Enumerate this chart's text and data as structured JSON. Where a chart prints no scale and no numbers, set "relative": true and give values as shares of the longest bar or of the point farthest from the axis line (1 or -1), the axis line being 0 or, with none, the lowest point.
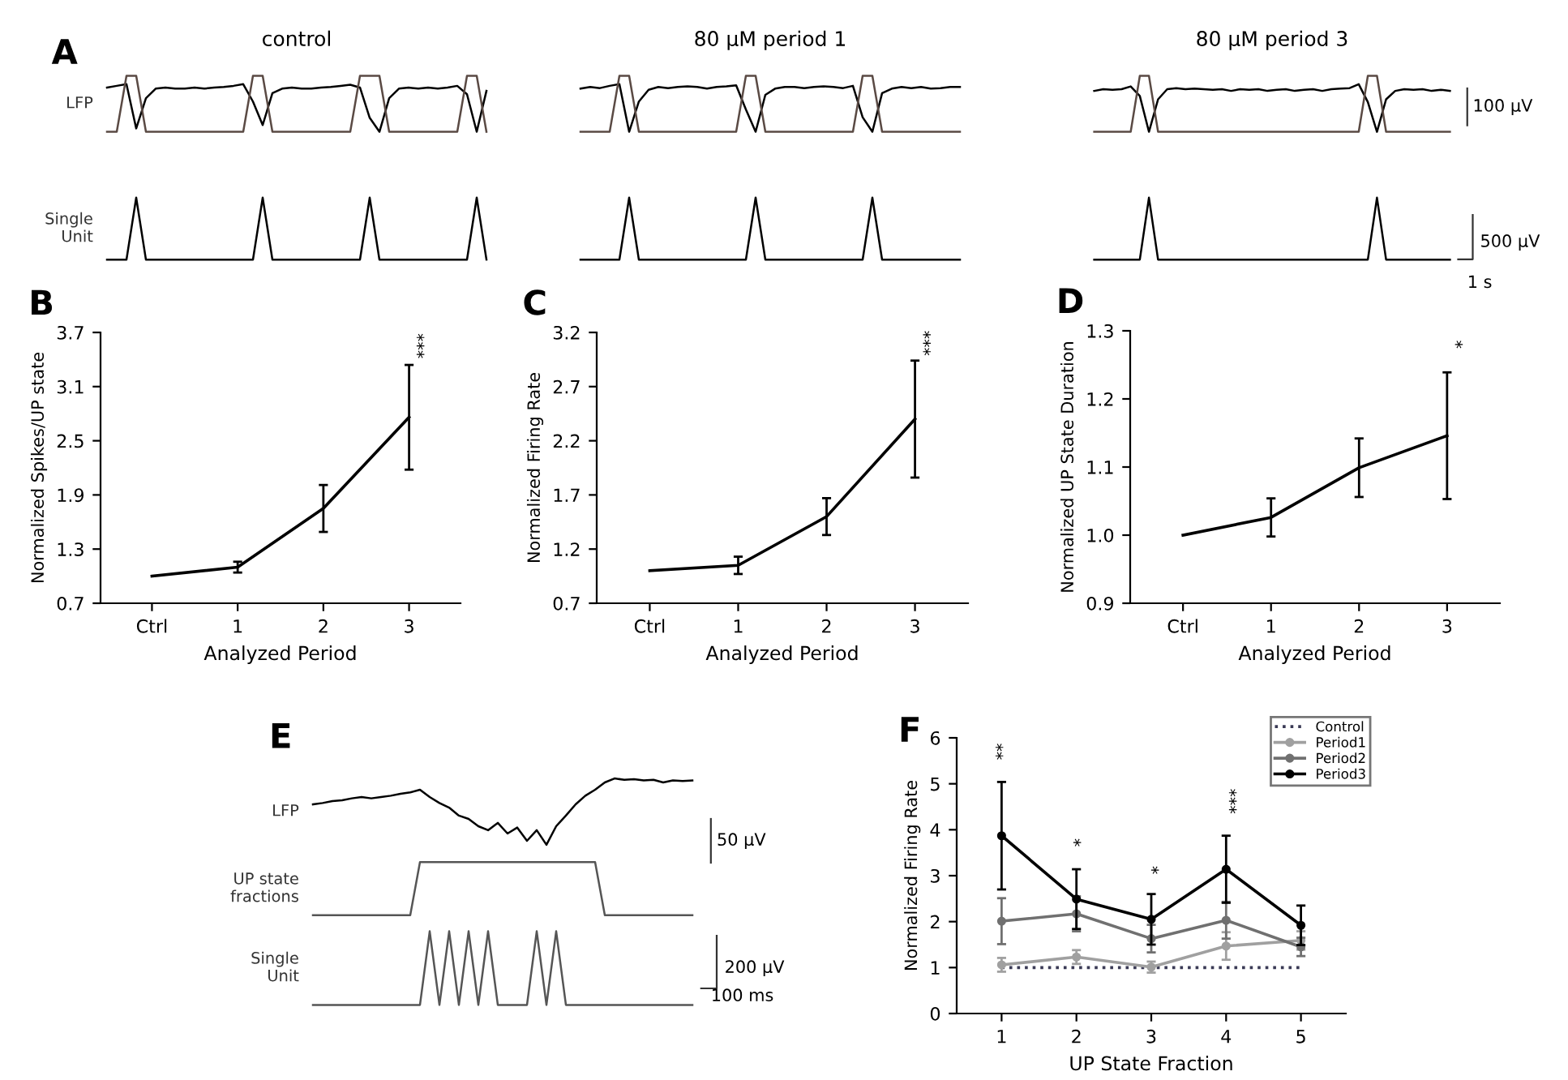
{
  "chart_data": [
    {
      "type": "line",
      "title": "control",
      "ylabel": "LFP",
      "relative": true,
      "annotations": [
        "A"
      ],
      "categories": [
        null,
        null,
        null,
        null,
        null,
        null,
        null,
        null,
        null,
        null,
        null,
        null,
        null,
        null,
        null,
        null,
        null,
        null,
        null,
        null,
        null,
        null,
        null,
        null,
        null,
        null,
        null,
        null,
        null,
        null,
        null,
        null,
        null,
        null,
        null,
        null,
        null,
        null,
        null,
        null
      ],
      "series": [
        {
          "color": "#000000",
          "values": [
            0.79,
            0.82,
            0.85,
            0.06,
            0.6,
            0.77,
            0.79,
            0.77,
            0.77,
            0.79,
            0.77,
            0.79,
            0.8,
            0.82,
            0.85,
            0.54,
            0.12,
            0.69,
            0.77,
            0.79,
            0.77,
            0.77,
            0.79,
            0.8,
            0.82,
            0.84,
            0.79,
            0.25,
            0,
            0.6,
            0.77,
            0.79,
            0.77,
            0.79,
            0.77,
            0.79,
            0.82,
            0.67,
            0,
            0.73
          ]
        },
        {
          "color": "#5a4a44",
          "values": [
            0,
            0,
            1,
            1,
            0,
            0,
            0,
            0,
            0,
            0,
            0,
            0,
            0,
            0,
            0,
            1,
            1,
            0,
            0,
            0,
            0,
            0,
            0,
            0,
            0,
            0,
            1,
            1,
            1,
            0,
            0,
            0,
            0,
            0,
            0,
            0,
            0,
            1,
            1,
            0
          ]
        }
      ]
    },
    {
      "type": "line",
      "ylabel": "Single Unit",
      "relative": true,
      "categories": [
        null,
        null,
        null,
        null,
        null,
        null,
        null,
        null,
        null,
        null,
        null,
        null,
        null,
        null,
        null,
        null,
        null,
        null,
        null,
        null,
        null,
        null,
        null,
        null,
        null,
        null,
        null,
        null,
        null,
        null,
        null,
        null,
        null,
        null,
        null,
        null,
        null,
        null,
        null,
        null
      ],
      "series": [
        {
          "color": "#000000",
          "values": [
            0,
            0,
            0,
            1,
            0,
            0,
            0,
            0,
            0,
            0,
            0,
            0,
            0,
            0,
            0,
            0,
            1,
            0,
            0,
            0,
            0,
            0,
            0,
            0,
            0,
            0,
            0,
            1,
            0,
            0,
            0,
            0,
            0,
            0,
            0,
            0,
            0,
            0,
            1,
            0
          ]
        }
      ]
    },
    {
      "type": "line",
      "title": "80 µM period 1",
      "relative": true,
      "categories": [
        null,
        null,
        null,
        null,
        null,
        null,
        null,
        null,
        null,
        null,
        null,
        null,
        null,
        null,
        null,
        null,
        null,
        null,
        null,
        null,
        null,
        null,
        null,
        null,
        null,
        null,
        null,
        null,
        null,
        null,
        null,
        null,
        null,
        null,
        null,
        null,
        null,
        null,
        null,
        null
      ],
      "series": [
        {
          "color": "#000000",
          "values": [
            0.77,
            0.8,
            0.78,
            0.82,
            0.85,
            0,
            0.54,
            0.75,
            0.8,
            0.78,
            0.8,
            0.81,
            0.8,
            0.77,
            0.8,
            0.81,
            0.83,
            0.4,
            0,
            0.66,
            0.77,
            0.8,
            0.8,
            0.78,
            0.8,
            0.81,
            0.8,
            0.78,
            0.82,
            0.26,
            0,
            0.69,
            0.77,
            0.8,
            0.78,
            0.8,
            0.77,
            0.78,
            0.8,
            0.8
          ]
        },
        {
          "color": "#5a4a44",
          "values": [
            0,
            0,
            0,
            0,
            1,
            1,
            0,
            0,
            0,
            0,
            0,
            0,
            0,
            0,
            0,
            0,
            0,
            1,
            1,
            0,
            0,
            0,
            0,
            0,
            0,
            0,
            0,
            0,
            0,
            1,
            1,
            0,
            0,
            0,
            0,
            0,
            0,
            0,
            0,
            0
          ]
        }
      ]
    },
    {
      "type": "line",
      "relative": true,
      "categories": [
        null,
        null,
        null,
        null,
        null,
        null,
        null,
        null,
        null,
        null,
        null,
        null,
        null,
        null,
        null,
        null,
        null,
        null,
        null,
        null,
        null,
        null,
        null,
        null,
        null,
        null,
        null,
        null,
        null,
        null,
        null,
        null,
        null,
        null,
        null,
        null,
        null,
        null,
        null,
        null
      ],
      "series": [
        {
          "color": "#000000",
          "values": [
            0,
            0,
            0,
            0,
            0,
            1,
            0,
            0,
            0,
            0,
            0,
            0,
            0,
            0,
            0,
            0,
            0,
            0,
            1,
            0,
            0,
            0,
            0,
            0,
            0,
            0,
            0,
            0,
            0,
            0,
            1,
            0,
            0,
            0,
            0,
            0,
            0,
            0,
            0,
            0
          ]
        }
      ]
    },
    {
      "type": "line",
      "title": "80 µM period 3",
      "relative": true,
      "annotations": [
        "100 µV"
      ],
      "categories": [
        null,
        null,
        null,
        null,
        null,
        null,
        null,
        null,
        null,
        null,
        null,
        null,
        null,
        null,
        null,
        null,
        null,
        null,
        null,
        null,
        null,
        null,
        null,
        null,
        null,
        null,
        null,
        null,
        null,
        null,
        null,
        null,
        null,
        null,
        null,
        null,
        null,
        null,
        null,
        null
      ],
      "series": [
        {
          "color": "#000000",
          "values": [
            0.73,
            0.76,
            0.75,
            0.76,
            0.81,
            0.64,
            0,
            0.58,
            0.76,
            0.78,
            0.76,
            0.77,
            0.76,
            0.75,
            0.76,
            0.73,
            0.76,
            0.75,
            0.76,
            0.73,
            0.75,
            0.76,
            0.73,
            0.75,
            0.76,
            0.73,
            0.76,
            0.77,
            0.78,
            0.85,
            0.53,
            0,
            0.58,
            0.73,
            0.76,
            0.75,
            0.76,
            0.73,
            0.75,
            0.73
          ]
        },
        {
          "color": "#5a4a44",
          "values": [
            0,
            0,
            0,
            0,
            0,
            1,
            1,
            0,
            0,
            0,
            0,
            0,
            0,
            0,
            0,
            0,
            0,
            0,
            0,
            0,
            0,
            0,
            0,
            0,
            0,
            0,
            0,
            0,
            0,
            0,
            1,
            1,
            0,
            0,
            0,
            0,
            0,
            0,
            0,
            0
          ]
        }
      ]
    },
    {
      "type": "line",
      "relative": true,
      "annotations": [
        "500 µV",
        "1 s"
      ],
      "categories": [
        null,
        null,
        null,
        null,
        null,
        null,
        null,
        null,
        null,
        null,
        null,
        null,
        null,
        null,
        null,
        null,
        null,
        null,
        null,
        null,
        null,
        null,
        null,
        null,
        null,
        null,
        null,
        null,
        null,
        null,
        null,
        null,
        null,
        null,
        null,
        null,
        null,
        null,
        null,
        null
      ],
      "series": [
        {
          "color": "#000000",
          "values": [
            0,
            0,
            0,
            0,
            0,
            0,
            1,
            0,
            0,
            0,
            0,
            0,
            0,
            0,
            0,
            0,
            0,
            0,
            0,
            0,
            0,
            0,
            0,
            0,
            0,
            0,
            0,
            0,
            0,
            0,
            0,
            1,
            0,
            0,
            0,
            0,
            0,
            0,
            0,
            0
          ]
        }
      ]
    },
    {
      "type": "line",
      "xlabel": "Analyzed Period",
      "ylabel": "Normalized Spikes/UP state",
      "categories": [
        "Ctrl",
        "1",
        "2",
        "3"
      ],
      "ylim": [
        0.7,
        3.7
      ],
      "yticks": [
        0.7,
        1.3,
        1.9,
        2.5,
        3.1,
        3.7
      ],
      "annotations": [
        "B",
        "***"
      ],
      "series": [
        {
          "color": "#000000",
          "values": [
            1.0,
            1.1,
            1.75,
            2.76
          ],
          "errors": [
            null,
            0.06,
            0.26,
            0.58
          ]
        }
      ]
    },
    {
      "type": "line",
      "xlabel": "Analyzed Period",
      "ylabel": "Normalized Firing Rate",
      "categories": [
        "Ctrl",
        "1",
        "2",
        "3"
      ],
      "ylim": [
        0.7,
        3.2
      ],
      "yticks": [
        0.7,
        1.2,
        1.7,
        2.2,
        2.7,
        3.2
      ],
      "annotations": [
        "C",
        "***"
      ],
      "series": [
        {
          "color": "#000000",
          "values": [
            1.0,
            1.05,
            1.5,
            2.4
          ],
          "errors": [
            null,
            0.08,
            0.17,
            0.54
          ]
        }
      ]
    },
    {
      "type": "line",
      "xlabel": "Analyzed Period",
      "ylabel": "Normalized UP State Duration",
      "categories": [
        "Ctrl",
        "1",
        "2",
        "3"
      ],
      "ylim": [
        0.9,
        1.3
      ],
      "yticks": [
        0.9,
        {
          "value": 1,
          "label": "1.0"
        },
        1.1,
        1.2,
        1.3
      ],
      "annotations": [
        "D",
        "*"
      ],
      "series": [
        {
          "color": "#000000",
          "values": [
            1.0,
            1.026,
            1.099,
            1.146
          ],
          "errors": [
            null,
            0.028,
            0.043,
            0.093
          ]
        }
      ]
    },
    {
      "type": "line",
      "ylabel": "LFP",
      "relative": true,
      "annotations": [
        "E",
        "50 µV"
      ],
      "categories": [
        null,
        null,
        null,
        null,
        null,
        null,
        null,
        null,
        null,
        null,
        null,
        null,
        null,
        null,
        null,
        null,
        null,
        null,
        null,
        null,
        null,
        null,
        null,
        null,
        null,
        null,
        null,
        null,
        null,
        null,
        null,
        null,
        null,
        null,
        null,
        null,
        null,
        null,
        null,
        null
      ],
      "series": [
        {
          "color": "#000000",
          "values": [
            0.61,
            0.63,
            0.66,
            0.67,
            0.7,
            0.72,
            0.7,
            0.72,
            0.74,
            0.77,
            0.79,
            0.83,
            0.72,
            0.63,
            0.56,
            0.44,
            0.39,
            0.28,
            0.22,
            0.33,
            0.17,
            0.26,
            0.06,
            0.22,
            0,
            0.28,
            0.44,
            0.61,
            0.74,
            0.83,
            0.94,
            1,
            0.98,
            0.99,
            0.97,
            0.98,
            0.94,
            0.97,
            0.96,
            0.97
          ]
        }
      ]
    },
    {
      "type": "line",
      "ylabel": "UP state fractions",
      "relative": true,
      "categories": [
        null,
        null,
        null,
        null,
        null,
        null,
        null,
        null,
        null,
        null,
        null,
        null,
        null,
        null,
        null,
        null,
        null,
        null,
        null,
        null,
        null,
        null,
        null,
        null,
        null,
        null,
        null,
        null,
        null,
        null,
        null,
        null,
        null,
        null,
        null,
        null,
        null,
        null,
        null,
        null
      ],
      "series": [
        {
          "color": "#555555",
          "values": [
            0,
            0,
            0,
            0,
            0,
            0,
            0,
            0,
            0,
            0,
            0,
            1,
            1,
            1,
            1,
            1,
            1,
            1,
            1,
            1,
            1,
            1,
            1,
            1,
            1,
            1,
            1,
            1,
            1,
            1,
            0,
            0,
            0,
            0,
            0,
            0,
            0,
            0,
            0,
            0
          ]
        }
      ]
    },
    {
      "type": "line",
      "ylabel": "Single Unit",
      "relative": true,
      "annotations": [
        "200 µV",
        "100 ms"
      ],
      "categories": [
        null,
        null,
        null,
        null,
        null,
        null,
        null,
        null,
        null,
        null,
        null,
        null,
        null,
        null,
        null,
        null,
        null,
        null,
        null,
        null,
        null,
        null,
        null,
        null,
        null,
        null,
        null,
        null,
        null,
        null,
        null,
        null,
        null,
        null,
        null,
        null,
        null,
        null,
        null,
        null
      ],
      "series": [
        {
          "color": "#555555",
          "values": [
            0,
            0,
            0,
            0,
            0,
            0,
            0,
            0,
            0,
            0,
            0,
            0,
            1,
            0,
            1,
            0,
            1,
            0,
            1,
            0,
            0,
            0,
            0,
            1,
            0,
            1,
            0,
            0,
            0,
            0,
            0,
            0,
            0,
            0,
            0,
            0,
            0,
            0,
            0,
            0
          ]
        }
      ]
    },
    {
      "type": "line",
      "xlabel": "UP State Fraction",
      "ylabel": "Normalized Firing Rate",
      "categories": [
        "1",
        "2",
        "3",
        "4",
        "5"
      ],
      "ylim": [
        0,
        6
      ],
      "yticks": [
        0,
        1,
        2,
        3,
        4,
        5,
        6
      ],
      "legend": "top right",
      "annotations": [
        "F",
        "**",
        "*",
        "*",
        "***"
      ],
      "series": [
        {
          "name": "Control",
          "color": "#3a3a55",
          "line_style": "dotted",
          "marker": "none",
          "values": [
            1,
            1,
            1,
            1,
            1
          ]
        },
        {
          "name": "Period1",
          "color": "#a0a0a0",
          "marker": "circle",
          "values": [
            1.06,
            1.23,
            1.01,
            1.47,
            1.59
          ],
          "errors": [
            0.15,
            0.15,
            0.12,
            0.3,
            0.2
          ]
        },
        {
          "name": "Period2",
          "color": "#707070",
          "marker": "circle",
          "values": [
            2.01,
            2.17,
            1.63,
            2.03,
            1.45
          ],
          "errors": [
            0.5,
            0.38,
            0.3,
            0.4,
            0.2
          ]
        },
        {
          "name": "Period3",
          "color": "#000000",
          "marker": "circle",
          "values": [
            3.87,
            2.49,
            2.05,
            3.14,
            1.92
          ],
          "errors": [
            1.17,
            0.65,
            0.55,
            0.73,
            0.43
          ]
        }
      ]
    }
  ]
}
